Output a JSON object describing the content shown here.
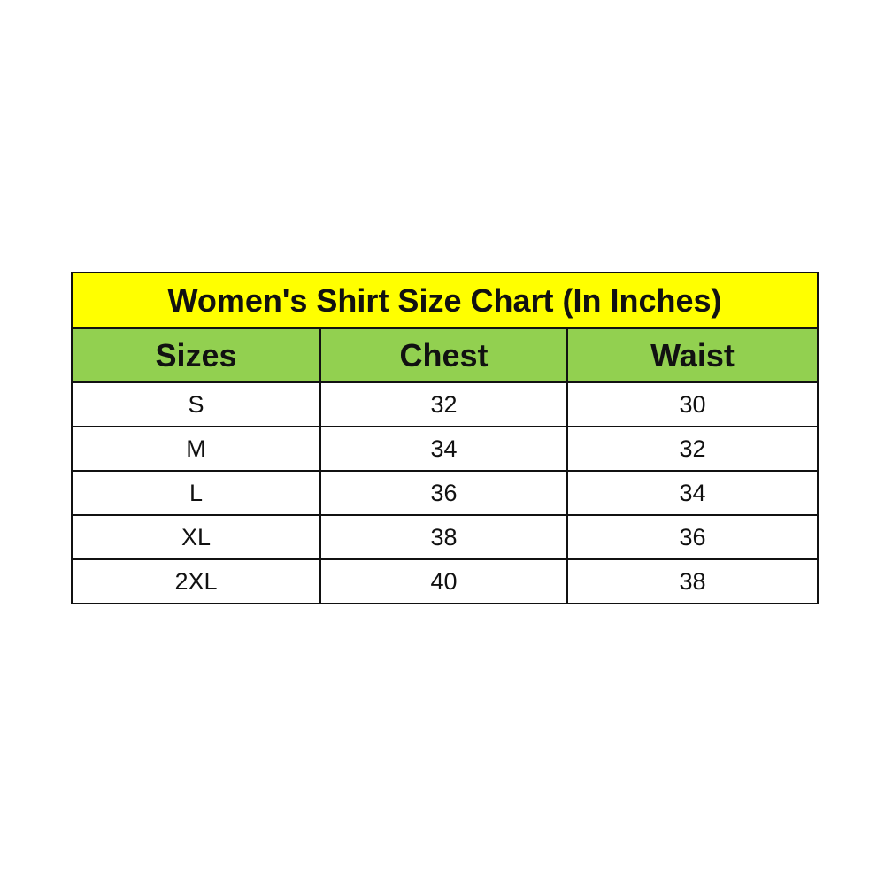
{
  "title": "Women's Shirt Size Chart (In Inches)",
  "colors": {
    "title_bg": "#ffff00",
    "header_bg": "#92d050"
  },
  "headers": [
    "Sizes",
    "Chest",
    "Waist"
  ],
  "rows": [
    [
      "S",
      "32",
      "30"
    ],
    [
      "M",
      "34",
      "32"
    ],
    [
      "L",
      "36",
      "34"
    ],
    [
      "XL",
      "38",
      "36"
    ],
    [
      "2XL",
      "40",
      "38"
    ]
  ]
}
